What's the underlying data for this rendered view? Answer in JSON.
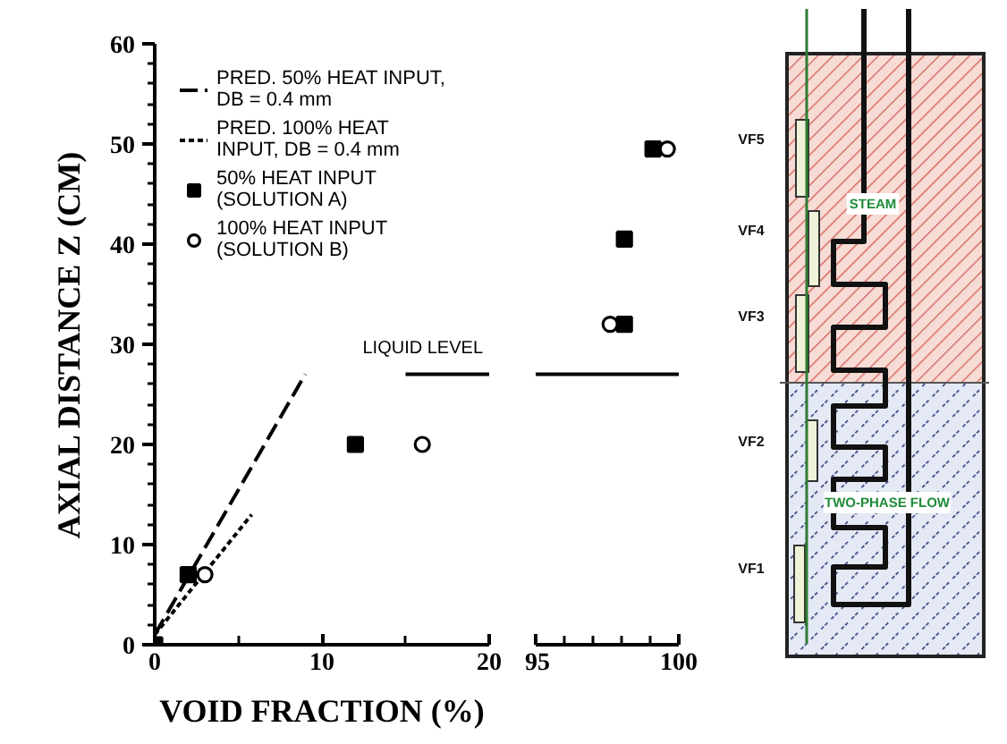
{
  "chart_data": [
    {
      "type": "scatter",
      "xlabel": "VOID FRACTION (%)",
      "ylabel": "AXIAL DISTANCE Z (CM)",
      "xlim": [
        0,
        20
      ],
      "xticks": [
        0,
        {
          "value": 5,
          "label": null
        },
        10,
        {
          "value": 15,
          "label": null
        },
        20
      ],
      "ylim": [
        0,
        60
      ],
      "yticks": [
        0,
        {
          "value": 2,
          "label": null
        },
        {
          "value": 4,
          "label": null
        },
        {
          "value": 6,
          "label": null
        },
        {
          "value": 8,
          "label": null
        },
        10,
        {
          "value": 12,
          "label": null
        },
        {
          "value": 14,
          "label": null
        },
        {
          "value": 16,
          "label": null
        },
        {
          "value": 18,
          "label": null
        },
        20,
        {
          "value": 22,
          "label": null
        },
        {
          "value": 24,
          "label": null
        },
        {
          "value": 26,
          "label": null
        },
        {
          "value": 28,
          "label": null
        },
        30,
        {
          "value": 32,
          "label": null
        },
        {
          "value": 34,
          "label": null
        },
        {
          "value": 36,
          "label": null
        },
        {
          "value": 38,
          "label": null
        },
        40,
        {
          "value": 42,
          "label": null
        },
        {
          "value": 44,
          "label": null
        },
        {
          "value": 46,
          "label": null
        },
        {
          "value": 48,
          "label": null
        },
        50,
        {
          "value": 52,
          "label": null
        },
        {
          "value": 54,
          "label": null
        },
        {
          "value": 56,
          "label": null
        },
        {
          "value": 58,
          "label": null
        },
        60
      ],
      "legend": "top left",
      "annotations": [
        {
          "text": "LIQUID LEVEL",
          "x": 15,
          "y": 27
        }
      ],
      "series": [
        {
          "name": "PRED. 50% HEAT INPUT, DB = 0.4 mm",
          "type": "line",
          "line_style": "dashed",
          "color": "#000000",
          "x": [
            0,
            9
          ],
          "values": [
            1,
            27
          ]
        },
        {
          "name": "PRED. 100% HEAT INPUT, DB = 0.4 mm",
          "type": "line",
          "line_style": "dotted",
          "color": "#000000",
          "x": [
            0,
            5.8
          ],
          "values": [
            1,
            13
          ]
        },
        {
          "name": "50% HEAT INPUT (SOLUTION A)",
          "marker": "square",
          "color": "#000000",
          "x": [
            0,
            2,
            12
          ],
          "values": [
            0,
            7,
            20
          ]
        },
        {
          "name": "100% HEAT INPUT (SOLUTION B)",
          "marker": "circle",
          "color": "#000000",
          "x": [
            3,
            16
          ],
          "values": [
            7,
            20
          ]
        },
        {
          "type": "line",
          "color": "#000000",
          "x": [
            15,
            20
          ],
          "values": [
            27,
            27
          ]
        }
      ]
    },
    {
      "type": "scatter",
      "xlim": [
        95,
        100
      ],
      "xticks": [
        95,
        {
          "value": 96,
          "label": null
        },
        {
          "value": 97,
          "label": null
        },
        {
          "value": 98,
          "label": null
        },
        {
          "value": 99,
          "label": null
        },
        100
      ],
      "ylim": [
        0,
        60
      ],
      "tick_labels": "x",
      "series": [
        {
          "marker": "square",
          "color": "#000000",
          "x": [
            99.1,
            98.1,
            98.1
          ],
          "values": [
            49.5,
            40.5,
            32
          ]
        },
        {
          "marker": "circle",
          "color": "#000000",
          "x": [
            99.6,
            97.6
          ],
          "values": [
            49.5,
            32
          ]
        },
        {
          "type": "line",
          "color": "#000000",
          "x": [
            95,
            100
          ],
          "values": [
            27,
            27
          ]
        }
      ]
    },
    {
      "type": "other",
      "annotations": [
        "VF5",
        "VF4",
        "VF3",
        "VF2",
        "VF1",
        "STEAM",
        "TWO-PHASE FLOW"
      ]
    }
  ]
}
